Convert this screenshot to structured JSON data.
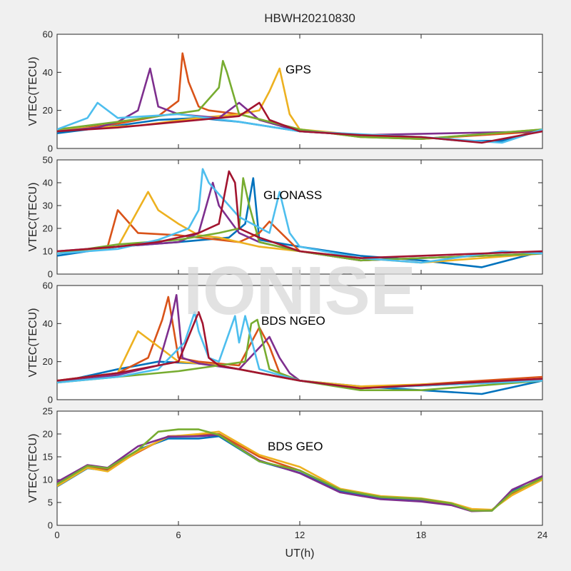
{
  "chart_data": {
    "type": "line",
    "title": "HBWH20210830",
    "watermark": "IONISE",
    "xlabel": "UT(h)",
    "xlim": [
      0,
      24
    ],
    "xticks": [
      0,
      6,
      12,
      18,
      24
    ],
    "colors": [
      "#0072BD",
      "#D95319",
      "#EDB120",
      "#7E2F8E",
      "#77AC30",
      "#4DBEEE",
      "#A2142F"
    ],
    "panels": [
      {
        "label": "GPS",
        "ylabel": "VTEC(TECU)",
        "ylim": [
          0,
          60
        ],
        "yticks": [
          0,
          20,
          40,
          60
        ],
        "series": [
          {
            "color": "#0072BD",
            "x": [
              0,
              3,
              5,
              7,
              9,
              12,
              15,
              18,
              20,
              22,
              24
            ],
            "y": [
              8,
              12,
              15,
              16,
              14,
              9,
              7,
              6,
              4,
              4,
              10
            ]
          },
          {
            "color": "#D95319",
            "x": [
              0,
              3,
              5,
              6,
              6.2,
              6.5,
              7,
              7.5,
              9,
              12,
              15,
              18,
              24
            ],
            "y": [
              9,
              13,
              17,
              25,
              50,
              35,
              22,
              20,
              18,
              10,
              6,
              5,
              9
            ]
          },
          {
            "color": "#EDB120",
            "x": [
              0,
              4,
              7,
              9,
              10,
              10.5,
              11,
              11.5,
              12,
              15,
              18,
              24
            ],
            "y": [
              10,
              12,
              16,
              18,
              20,
              30,
              42,
              18,
              10,
              7,
              5,
              10
            ]
          },
          {
            "color": "#7E2F8E",
            "x": [
              0,
              2,
              3,
              4,
              4.6,
              5,
              6,
              8,
              9,
              10,
              12,
              15,
              24
            ],
            "y": [
              9,
              11,
              14,
              20,
              42,
              22,
              18,
              16,
              24,
              15,
              9,
              7,
              9
            ]
          },
          {
            "color": "#77AC30",
            "x": [
              0,
              3,
              5,
              7,
              8,
              8.2,
              8.4,
              9,
              12,
              15,
              18,
              24
            ],
            "y": [
              10,
              14,
              17,
              20,
              32,
              46,
              40,
              18,
              10,
              6,
              5,
              10
            ]
          },
          {
            "color": "#4DBEEE",
            "x": [
              0,
              1.5,
              2,
              3,
              6,
              9,
              12,
              18,
              22,
              24
            ],
            "y": [
              10,
              16,
              24,
              16,
              18,
              14,
              9,
              6,
              3,
              10
            ]
          },
          {
            "color": "#A2142F",
            "x": [
              0,
              3,
              6,
              8,
              9,
              10,
              10.5,
              12,
              15,
              18,
              21,
              24
            ],
            "y": [
              9,
              11,
              14,
              16,
              17,
              24,
              15,
              9,
              7,
              6,
              3,
              9
            ]
          }
        ]
      },
      {
        "label": "GLONASS",
        "ylabel": "VTEC(TECU)",
        "ylim": [
          0,
          50
        ],
        "yticks": [
          0,
          10,
          20,
          30,
          40,
          50
        ],
        "series": [
          {
            "color": "#0072BD",
            "x": [
              0,
              3,
              6,
              8.5,
              9.3,
              9.7,
              10,
              12,
              15,
              18,
              21,
              24
            ],
            "y": [
              8,
              12,
              14,
              16,
              22,
              42,
              15,
              12,
              8,
              6,
              3,
              10
            ]
          },
          {
            "color": "#D95319",
            "x": [
              0,
              2.5,
              3,
              4,
              6,
              8,
              9,
              10,
              10.5,
              12,
              15,
              24
            ],
            "y": [
              9,
              12,
              28,
              18,
              17,
              15,
              14,
              18,
              23,
              10,
              6,
              9
            ]
          },
          {
            "color": "#EDB120",
            "x": [
              0,
              3,
              4.5,
              5,
              6,
              7,
              8,
              10,
              12,
              15,
              18,
              24
            ],
            "y": [
              9,
              12,
              36,
              28,
              22,
              17,
              16,
              12,
              10,
              7,
              5,
              9
            ]
          },
          {
            "color": "#7E2F8E",
            "x": [
              0,
              3,
              6,
              7,
              7.7,
              8,
              9,
              10,
              12,
              15,
              24
            ],
            "y": [
              10,
              12,
              14,
              18,
              40,
              30,
              18,
              14,
              10,
              6,
              9
            ]
          },
          {
            "color": "#77AC30",
            "x": [
              0,
              3,
              6,
              8,
              9,
              9.2,
              9.5,
              10,
              12,
              15,
              24
            ],
            "y": [
              9,
              13,
              15,
              18,
              20,
              42,
              30,
              14,
              10,
              6,
              9
            ]
          },
          {
            "color": "#4DBEEE",
            "x": [
              0,
              3,
              5,
              6.5,
              7,
              7.2,
              7.5,
              9,
              10.5,
              11,
              11.5,
              12,
              15,
              18,
              22,
              24
            ],
            "y": [
              9,
              11,
              15,
              20,
              28,
              46,
              40,
              25,
              18,
              36,
              18,
              12,
              7,
              5,
              10,
              9
            ]
          },
          {
            "color": "#A2142F",
            "x": [
              0,
              3,
              5,
              7,
              8,
              8.5,
              8.8,
              9,
              10,
              12,
              15,
              24
            ],
            "y": [
              10,
              12,
              14,
              18,
              22,
              45,
              40,
              20,
              16,
              10,
              7,
              10
            ]
          }
        ]
      },
      {
        "label": "BDS NGEO",
        "ylabel": "VTEC(TECU)",
        "ylim": [
          0,
          60
        ],
        "yticks": [
          0,
          20,
          40,
          60
        ],
        "series": [
          {
            "color": "#0072BD",
            "x": [
              0,
              3,
              5,
              7,
              8,
              10,
              12,
              15,
              18,
              21,
              24
            ],
            "y": [
              9,
              16,
              20,
              19,
              18,
              14,
              10,
              7,
              5,
              3,
              10
            ]
          },
          {
            "color": "#D95319",
            "x": [
              0,
              3,
              4.5,
              5.2,
              5.5,
              6,
              7,
              9,
              10,
              10.5,
              11,
              12,
              15,
              24
            ],
            "y": [
              10,
              14,
              22,
              42,
              54,
              22,
              20,
              18,
              38,
              28,
              14,
              10,
              6,
              12
            ]
          },
          {
            "color": "#EDB120",
            "x": [
              0,
              3,
              4,
              5,
              5.5,
              6,
              8,
              10,
              12,
              15,
              24
            ],
            "y": [
              10,
              14,
              36,
              28,
              24,
              20,
              18,
              14,
              10,
              7,
              10
            ]
          },
          {
            "color": "#7E2F8E",
            "x": [
              0,
              3,
              5,
              5.6,
              5.9,
              6.2,
              7,
              9,
              10.5,
              11,
              11.5,
              12,
              15,
              24
            ],
            "y": [
              9,
              13,
              18,
              40,
              55,
              22,
              19,
              16,
              33,
              22,
              14,
              10,
              6,
              10
            ]
          },
          {
            "color": "#77AC30",
            "x": [
              0,
              3,
              6,
              8,
              9.3,
              9.6,
              9.9,
              10.5,
              12,
              15,
              18,
              24
            ],
            "y": [
              9,
              12,
              15,
              18,
              20,
              40,
              42,
              16,
              10,
              5,
              5,
              10
            ]
          },
          {
            "color": "#4DBEEE",
            "x": [
              0,
              3,
              5,
              6.3,
              6.8,
              7,
              7.5,
              8,
              8.8,
              9,
              9.3,
              10,
              12,
              15,
              24
            ],
            "y": [
              9,
              12,
              16,
              30,
              46,
              36,
              22,
              20,
              44,
              30,
              44,
              16,
              10,
              6,
              10
            ]
          },
          {
            "color": "#A2142F",
            "x": [
              0,
              3,
              5,
              6,
              7,
              7.2,
              7.5,
              8,
              10,
              12,
              15,
              24
            ],
            "y": [
              10,
              14,
              18,
              20,
              46,
              40,
              22,
              18,
              14,
              10,
              6,
              11
            ]
          }
        ]
      },
      {
        "label": "BDS GEO",
        "ylabel": "VTEC(TECU)",
        "ylim": [
          0,
          25
        ],
        "yticks": [
          0,
          5,
          10,
          15,
          20,
          25
        ],
        "series": [
          {
            "color": "#0072BD",
            "x": [
              0,
              1.5,
              2.5,
              4,
              5.5,
              7,
              8,
              10,
              12,
              14,
              16,
              18,
              19.5,
              20.5,
              21.5,
              22.5,
              24
            ],
            "y": [
              8.5,
              12.5,
              12,
              16.5,
              19,
              19,
              19.5,
              14,
              11.5,
              7.5,
              6,
              5.5,
              4.5,
              3.2,
              3.2,
              7.5,
              10
            ]
          },
          {
            "color": "#D95319",
            "x": [
              0,
              1.5,
              2.5,
              4,
              5.5,
              7,
              8,
              10,
              12,
              14,
              16,
              18,
              19.5,
              20.5,
              21.5,
              22.5,
              24
            ],
            "y": [
              9,
              12.8,
              12.3,
              16,
              19.5,
              19.8,
              20,
              15,
              12,
              7.8,
              6.2,
              5.7,
              4.7,
              3.4,
              3.3,
              7,
              10.5
            ]
          },
          {
            "color": "#EDB120",
            "x": [
              0,
              1.5,
              2.5,
              4,
              5.5,
              7,
              8,
              10,
              12,
              14,
              16,
              18,
              19.5,
              20.5,
              21.5,
              22.5,
              24
            ],
            "y": [
              8.6,
              12.6,
              11.8,
              16.2,
              19.4,
              20,
              20.5,
              15.4,
              12.8,
              8,
              6.4,
              5.9,
              4.9,
              3.6,
              3.4,
              6.6,
              10
            ]
          },
          {
            "color": "#7E2F8E",
            "x": [
              0,
              1.5,
              2.5,
              4,
              5.5,
              7,
              8,
              10,
              12,
              14,
              16,
              18,
              19.5,
              20.5,
              21.5,
              22.5,
              24
            ],
            "y": [
              9.5,
              13.2,
              12.6,
              17.3,
              19.4,
              19.5,
              19.8,
              14.2,
              11.4,
              7.2,
              5.7,
              5.2,
              4.4,
              3.1,
              3.2,
              7.8,
              10.8
            ]
          },
          {
            "color": "#77AC30",
            "x": [
              0,
              1.5,
              2.5,
              4,
              5,
              6,
              7,
              8,
              10,
              12,
              14,
              16,
              18,
              19.5,
              20.5,
              21.5,
              22.5,
              24
            ],
            "y": [
              9,
              13,
              12.5,
              16.5,
              20.5,
              21,
              21,
              19.8,
              14,
              12,
              7.8,
              6.2,
              5.8,
              4.8,
              3.2,
              3.2,
              7.2,
              10.3
            ]
          }
        ]
      }
    ]
  }
}
